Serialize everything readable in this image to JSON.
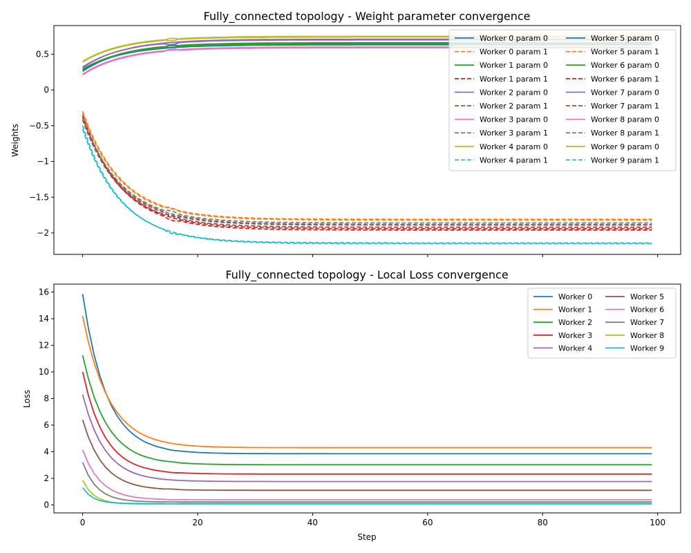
{
  "chart_data": [
    {
      "type": "line",
      "title": "Fully_connected topology - Weight parameter convergence",
      "xlabel": "",
      "ylabel": "Weights",
      "xlim": [
        -5,
        104
      ],
      "ylim": [
        -2.3,
        0.9
      ],
      "xticks": [
        0,
        20,
        40,
        60,
        80,
        100
      ],
      "yticks": [
        -2.0,
        -1.5,
        -1.0,
        -0.5,
        0.0,
        0.5
      ],
      "show_xtick_labels": false,
      "legend_position": "top-right",
      "legend_columns": 2,
      "x": [
        0,
        1,
        2,
        3,
        4,
        5,
        6,
        7,
        8,
        9,
        10,
        11,
        12,
        13,
        14,
        15,
        16,
        17,
        18,
        19,
        20,
        21,
        22,
        23,
        24,
        25,
        26,
        27,
        28,
        29,
        30,
        31,
        32,
        33,
        34,
        35,
        36,
        37,
        38,
        39,
        40,
        41,
        42,
        43,
        44,
        45,
        46,
        47,
        48,
        49,
        50,
        51,
        52,
        53,
        54,
        55,
        56,
        57,
        58,
        59,
        60,
        61,
        62,
        63,
        64,
        65,
        66,
        67,
        68,
        69,
        70,
        71,
        72,
        73,
        74,
        75,
        76,
        77,
        78,
        79,
        80,
        81,
        82,
        83,
        84,
        85,
        86,
        87,
        88,
        89,
        90,
        91,
        92,
        93,
        94,
        95,
        96,
        97,
        98,
        99
      ],
      "series": [
        {
          "name": "Worker 0 param 0",
          "color": "#1f77b4",
          "dash": false,
          "start": 0.26,
          "end": 0.65,
          "rate": 0.14
        },
        {
          "name": "Worker 0 param 1",
          "color": "#ff7f0e",
          "dash": true,
          "start": -0.3,
          "end": -1.81,
          "rate": 0.15
        },
        {
          "name": "Worker 1 param 0",
          "color": "#2ca02c",
          "dash": false,
          "start": 0.27,
          "end": 0.66,
          "rate": 0.14
        },
        {
          "name": "Worker 1 param 1",
          "color": "#d62728",
          "dash": true,
          "start": -0.35,
          "end": -1.96,
          "rate": 0.15
        },
        {
          "name": "Worker 2 param 0",
          "color": "#9467bd",
          "dash": false,
          "start": 0.31,
          "end": 0.71,
          "rate": 0.14
        },
        {
          "name": "Worker 2 param 1",
          "color": "#8c564b",
          "dash": true,
          "start": -0.42,
          "end": -1.92,
          "rate": 0.15
        },
        {
          "name": "Worker 3 param 0",
          "color": "#e377c2",
          "dash": false,
          "start": 0.21,
          "end": 0.59,
          "rate": 0.14
        },
        {
          "name": "Worker 3 param 1",
          "color": "#7f7f7f",
          "dash": true,
          "start": -0.38,
          "end": -1.88,
          "rate": 0.15
        },
        {
          "name": "Worker 4 param 0",
          "color": "#bcbd22",
          "dash": false,
          "start": 0.4,
          "end": 0.75,
          "rate": 0.14
        },
        {
          "name": "Worker 4 param 1",
          "color": "#17becf",
          "dash": true,
          "start": -0.5,
          "end": -2.15,
          "rate": 0.15
        },
        {
          "name": "Worker 5 param 0",
          "color": "#1f77b4",
          "dash": false,
          "start": 0.28,
          "end": 0.63,
          "rate": 0.14
        },
        {
          "name": "Worker 5 param 1",
          "color": "#ff7f0e",
          "dash": true,
          "start": -0.33,
          "end": -1.82,
          "rate": 0.15
        },
        {
          "name": "Worker 6 param 0",
          "color": "#2ca02c",
          "dash": false,
          "start": 0.29,
          "end": 0.64,
          "rate": 0.14
        },
        {
          "name": "Worker 6 param 1",
          "color": "#d62728",
          "dash": true,
          "start": -0.36,
          "end": -1.94,
          "rate": 0.15
        },
        {
          "name": "Worker 7 param 0",
          "color": "#9467bd",
          "dash": false,
          "start": 0.32,
          "end": 0.7,
          "rate": 0.14
        },
        {
          "name": "Worker 7 param 1",
          "color": "#8c564b",
          "dash": true,
          "start": -0.41,
          "end": -1.89,
          "rate": 0.15
        },
        {
          "name": "Worker 8 param 0",
          "color": "#e377c2",
          "dash": false,
          "start": 0.22,
          "end": 0.6,
          "rate": 0.14
        },
        {
          "name": "Worker 8 param 1",
          "color": "#7f7f7f",
          "dash": true,
          "start": -0.39,
          "end": -1.86,
          "rate": 0.15
        },
        {
          "name": "Worker 9 param 0",
          "color": "#bcbd22",
          "dash": false,
          "start": 0.39,
          "end": 0.74,
          "rate": 0.14
        },
        {
          "name": "Worker 9 param 1",
          "color": "#17becf",
          "dash": true,
          "start": -0.55,
          "end": -2.14,
          "rate": 0.15
        }
      ]
    },
    {
      "type": "line",
      "title": "Fully_connected topology - Local Loss convergence",
      "xlabel": "Step",
      "ylabel": "Loss",
      "xlim": [
        -5,
        104
      ],
      "ylim": [
        -0.6,
        16.6
      ],
      "xticks": [
        0,
        20,
        40,
        60,
        80,
        100
      ],
      "yticks": [
        0,
        2,
        4,
        6,
        8,
        10,
        12,
        14,
        16
      ],
      "show_xtick_labels": true,
      "legend_position": "top-right",
      "legend_columns": 2,
      "x": [
        0,
        1,
        2,
        3,
        4,
        5,
        6,
        7,
        8,
        9,
        10,
        11,
        12,
        13,
        14,
        15,
        16,
        17,
        18,
        19,
        20,
        21,
        22,
        23,
        24,
        25,
        26,
        27,
        28,
        29,
        30,
        31,
        32,
        33,
        34,
        35,
        36,
        37,
        38,
        39,
        40,
        41,
        42,
        43,
        44,
        45,
        46,
        47,
        48,
        49,
        50,
        51,
        52,
        53,
        54,
        55,
        56,
        57,
        58,
        59,
        60,
        61,
        62,
        63,
        64,
        65,
        66,
        67,
        68,
        69,
        70,
        71,
        72,
        73,
        74,
        75,
        76,
        77,
        78,
        79,
        80,
        81,
        82,
        83,
        84,
        85,
        86,
        87,
        88,
        89,
        90,
        91,
        92,
        93,
        94,
        95,
        96,
        97,
        98,
        99
      ],
      "series": [
        {
          "name": "Worker 0",
          "color": "#1f77b4",
          "start": 15.85,
          "end": 3.85,
          "rate": 0.24
        },
        {
          "name": "Worker 1",
          "color": "#ff7f0e",
          "start": 14.2,
          "end": 4.3,
          "rate": 0.22
        },
        {
          "name": "Worker 2",
          "color": "#2ca02c",
          "start": 11.25,
          "end": 3.02,
          "rate": 0.24
        },
        {
          "name": "Worker 3",
          "color": "#d62728",
          "start": 10.0,
          "end": 2.32,
          "rate": 0.26
        },
        {
          "name": "Worker 4",
          "color": "#9467bd",
          "start": 8.3,
          "end": 1.76,
          "rate": 0.26
        },
        {
          "name": "Worker 5",
          "color": "#8c564b",
          "start": 6.4,
          "end": 1.1,
          "rate": 0.28
        },
        {
          "name": "Worker 6",
          "color": "#e377c2",
          "start": 4.15,
          "end": 0.38,
          "rate": 0.32
        },
        {
          "name": "Worker 7",
          "color": "#7f7f7f",
          "start": 3.2,
          "end": 0.22,
          "rate": 0.4
        },
        {
          "name": "Worker 8",
          "color": "#bcbd22",
          "start": 1.85,
          "end": 0.06,
          "rate": 0.5
        },
        {
          "name": "Worker 9",
          "color": "#17becf",
          "start": 1.3,
          "end": 0.1,
          "rate": 0.55
        }
      ]
    }
  ]
}
